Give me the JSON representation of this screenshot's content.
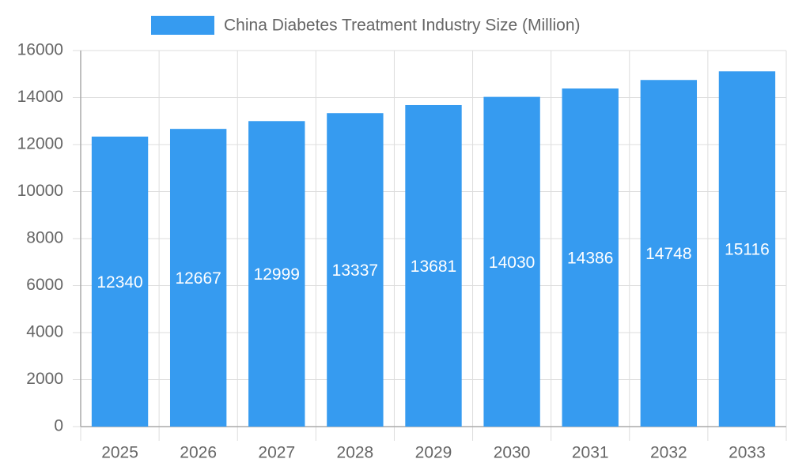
{
  "chart_data": {
    "type": "bar",
    "categories": [
      "2025",
      "2026",
      "2027",
      "2028",
      "2029",
      "2030",
      "2031",
      "2032",
      "2033"
    ],
    "series": [
      {
        "name": "China Diabetes Treatment Industry Size (Million)",
        "color": "#369bf0",
        "values": [
          12340,
          12667,
          12999,
          13337,
          13681,
          14030,
          14386,
          14748,
          15116
        ]
      }
    ],
    "ylim": [
      0,
      16000
    ],
    "yticks": [
      0,
      2000,
      4000,
      6000,
      8000,
      10000,
      12000,
      14000,
      16000
    ],
    "grid": true,
    "legend": "top",
    "data_labels": true
  }
}
